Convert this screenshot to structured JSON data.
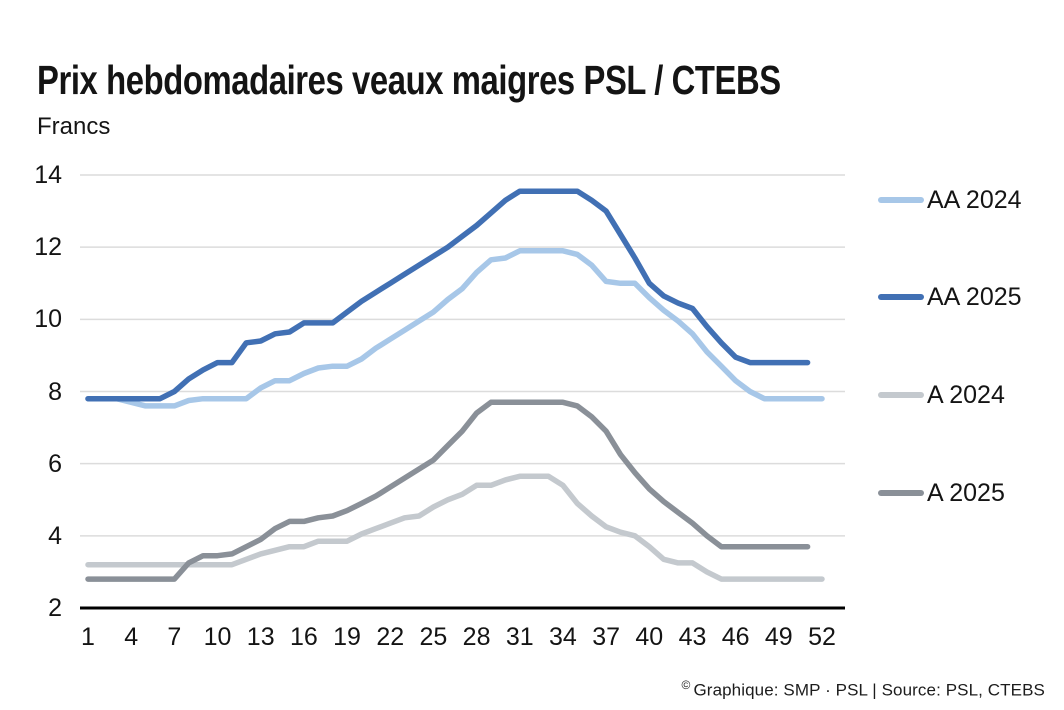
{
  "title": "Prix hebdomadaires veaux maigres PSL / CTEBS",
  "y_axis_title": "Francs",
  "footer": {
    "symbol": "©",
    "text": "Graphique: SMP · PSL | Source: PSL, CTEBS"
  },
  "colors": {
    "aa_2024": "#a7c7e8",
    "aa_2025": "#4170b4",
    "a_2024": "#c4c9ce",
    "a_2025": "#8a9098",
    "gridline": "#dcdcdc",
    "axis": "#000000",
    "text": "#141414"
  },
  "chart_data": {
    "type": "line",
    "title": "Prix hebdomadaires veaux maigres PSL / CTEBS",
    "ylabel": "Francs",
    "xlabel": "",
    "x_unit": "week",
    "xlim": [
      1,
      52
    ],
    "ylim": [
      2,
      14
    ],
    "xticks": [
      1,
      4,
      7,
      10,
      13,
      16,
      19,
      22,
      25,
      28,
      31,
      34,
      37,
      40,
      43,
      46,
      49,
      52
    ],
    "yticks": [
      2,
      4,
      6,
      8,
      10,
      12,
      14
    ],
    "grid": "horizontal-only",
    "legend_position": "right",
    "series": [
      {
        "name": "AA 2024",
        "color": "#a7c7e8",
        "start_week": 1,
        "values": [
          7.8,
          7.8,
          7.8,
          7.7,
          7.6,
          7.6,
          7.6,
          7.75,
          7.8,
          7.8,
          7.8,
          7.8,
          8.1,
          8.3,
          8.3,
          8.5,
          8.65,
          8.7,
          8.7,
          8.9,
          9.2,
          9.45,
          9.7,
          9.95,
          10.2,
          10.55,
          10.85,
          11.3,
          11.65,
          11.7,
          11.9,
          11.9,
          11.9,
          11.9,
          11.8,
          11.5,
          11.05,
          11.0,
          11.0,
          10.6,
          10.25,
          9.95,
          9.6,
          9.1,
          8.7,
          8.3,
          8.0,
          7.8,
          7.8,
          7.8,
          7.8,
          7.8
        ]
      },
      {
        "name": "AA 2025",
        "color": "#4170b4",
        "start_week": 1,
        "values": [
          7.8,
          7.8,
          7.8,
          7.8,
          7.8,
          7.8,
          8.0,
          8.35,
          8.6,
          8.8,
          8.8,
          9.35,
          9.4,
          9.6,
          9.65,
          9.9,
          9.9,
          9.9,
          10.2,
          10.5,
          10.75,
          11.0,
          11.25,
          11.5,
          11.75,
          12.0,
          12.3,
          12.6,
          12.95,
          13.3,
          13.55,
          13.55,
          13.55,
          13.55,
          13.55,
          13.3,
          13.0,
          12.35,
          11.7,
          11.0,
          10.65,
          10.45,
          10.3,
          9.8,
          9.35,
          8.95,
          8.8,
          8.8,
          8.8,
          8.8,
          8.8
        ]
      },
      {
        "name": "A 2024",
        "color": "#c4c9ce",
        "start_week": 1,
        "values": [
          3.2,
          3.2,
          3.2,
          3.2,
          3.2,
          3.2,
          3.2,
          3.2,
          3.2,
          3.2,
          3.2,
          3.35,
          3.5,
          3.6,
          3.7,
          3.7,
          3.85,
          3.85,
          3.85,
          4.05,
          4.2,
          4.35,
          4.5,
          4.55,
          4.8,
          5.0,
          5.15,
          5.4,
          5.4,
          5.55,
          5.65,
          5.65,
          5.65,
          5.4,
          4.9,
          4.55,
          4.25,
          4.1,
          4.0,
          3.7,
          3.35,
          3.25,
          3.25,
          3.0,
          2.8,
          2.8,
          2.8,
          2.8,
          2.8,
          2.8,
          2.8,
          2.8
        ]
      },
      {
        "name": "A 2025",
        "color": "#8a9098",
        "start_week": 1,
        "values": [
          2.8,
          2.8,
          2.8,
          2.8,
          2.8,
          2.8,
          2.8,
          3.25,
          3.45,
          3.45,
          3.5,
          3.7,
          3.9,
          4.2,
          4.4,
          4.4,
          4.5,
          4.55,
          4.7,
          4.9,
          5.1,
          5.35,
          5.6,
          5.85,
          6.1,
          6.5,
          6.9,
          7.4,
          7.7,
          7.7,
          7.7,
          7.7,
          7.7,
          7.7,
          7.6,
          7.3,
          6.9,
          6.25,
          5.75,
          5.3,
          4.95,
          4.65,
          4.35,
          4.0,
          3.7,
          3.7,
          3.7,
          3.7,
          3.7,
          3.7,
          3.7
        ]
      }
    ]
  }
}
